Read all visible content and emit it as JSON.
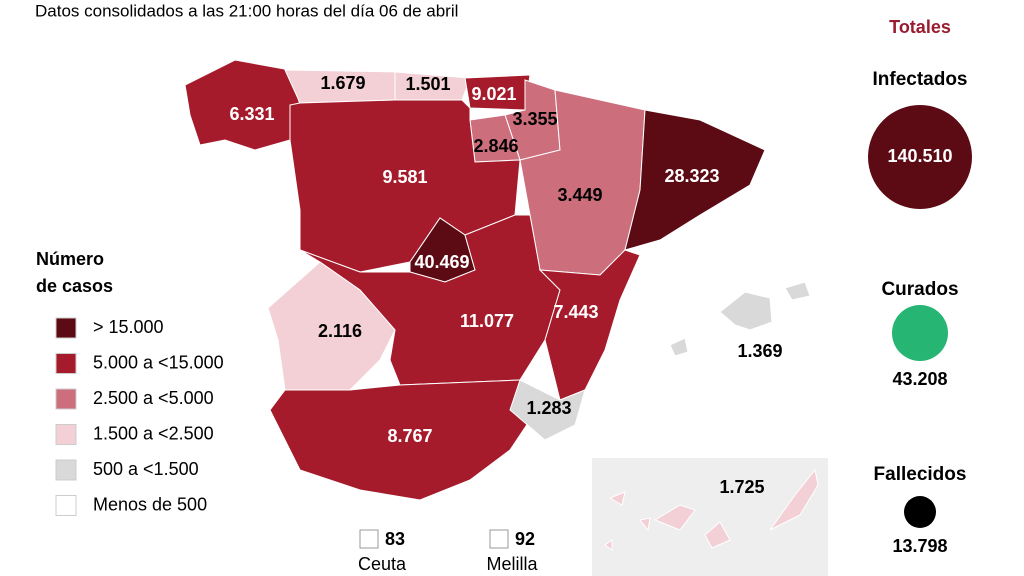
{
  "header": {
    "subtitle": "Datos consolidados a las 21:00 horas del día 06 de abril"
  },
  "legend": {
    "title_line1": "Número",
    "title_line2": "de casos",
    "items": [
      {
        "label": "> 15.000",
        "color": "#5c0a14"
      },
      {
        "label": "5.000 a <15.000",
        "color": "#a61b2b"
      },
      {
        "label": "2.500 a <5.000",
        "color": "#cd6e7c"
      },
      {
        "label": "1.500 a <2.500",
        "color": "#f2d0d5"
      },
      {
        "label": "500 a <1.500",
        "color": "#d9d9d9"
      },
      {
        "label": "Menos de 500",
        "color": "#ffffff"
      }
    ]
  },
  "regions": [
    {
      "value": "6.331",
      "color": "#a61b2b"
    },
    {
      "value": "1.679",
      "color": "#f2d0d5"
    },
    {
      "value": "1.501",
      "color": "#f2d0d5"
    },
    {
      "value": "9.021",
      "color": "#a61b2b"
    },
    {
      "value": "3.355",
      "color": "#cd6e7c"
    },
    {
      "value": "2.846",
      "color": "#cd6e7c"
    },
    {
      "value": "9.581",
      "color": "#a61b2b"
    },
    {
      "value": "3.449",
      "color": "#cd6e7c"
    },
    {
      "value": "28.323",
      "color": "#5c0a14"
    },
    {
      "value": "40.469",
      "color": "#5c0a14"
    },
    {
      "value": "11.077",
      "color": "#a61b2b"
    },
    {
      "value": "7.443",
      "color": "#a61b2b"
    },
    {
      "value": "2.116",
      "color": "#f2d0d5"
    },
    {
      "value": "8.767",
      "color": "#a61b2b"
    },
    {
      "value": "1.283",
      "color": "#d9d9d9"
    },
    {
      "value": "1.369",
      "color": "#d9d9d9"
    },
    {
      "value": "1.725",
      "color": "#f2d0d5"
    }
  ],
  "cities": [
    {
      "value": "83",
      "label": "Ceuta"
    },
    {
      "value": "92",
      "label": "Melilla"
    }
  ],
  "totals": {
    "title": "Totales",
    "items": [
      {
        "label": "Infectados",
        "value": "140.510",
        "color": "#5c0a14"
      },
      {
        "label": "Curados",
        "value": "43.208",
        "color": "#27b574"
      },
      {
        "label": "Fallecidos",
        "value": "13.798",
        "color": "#000000"
      }
    ]
  }
}
